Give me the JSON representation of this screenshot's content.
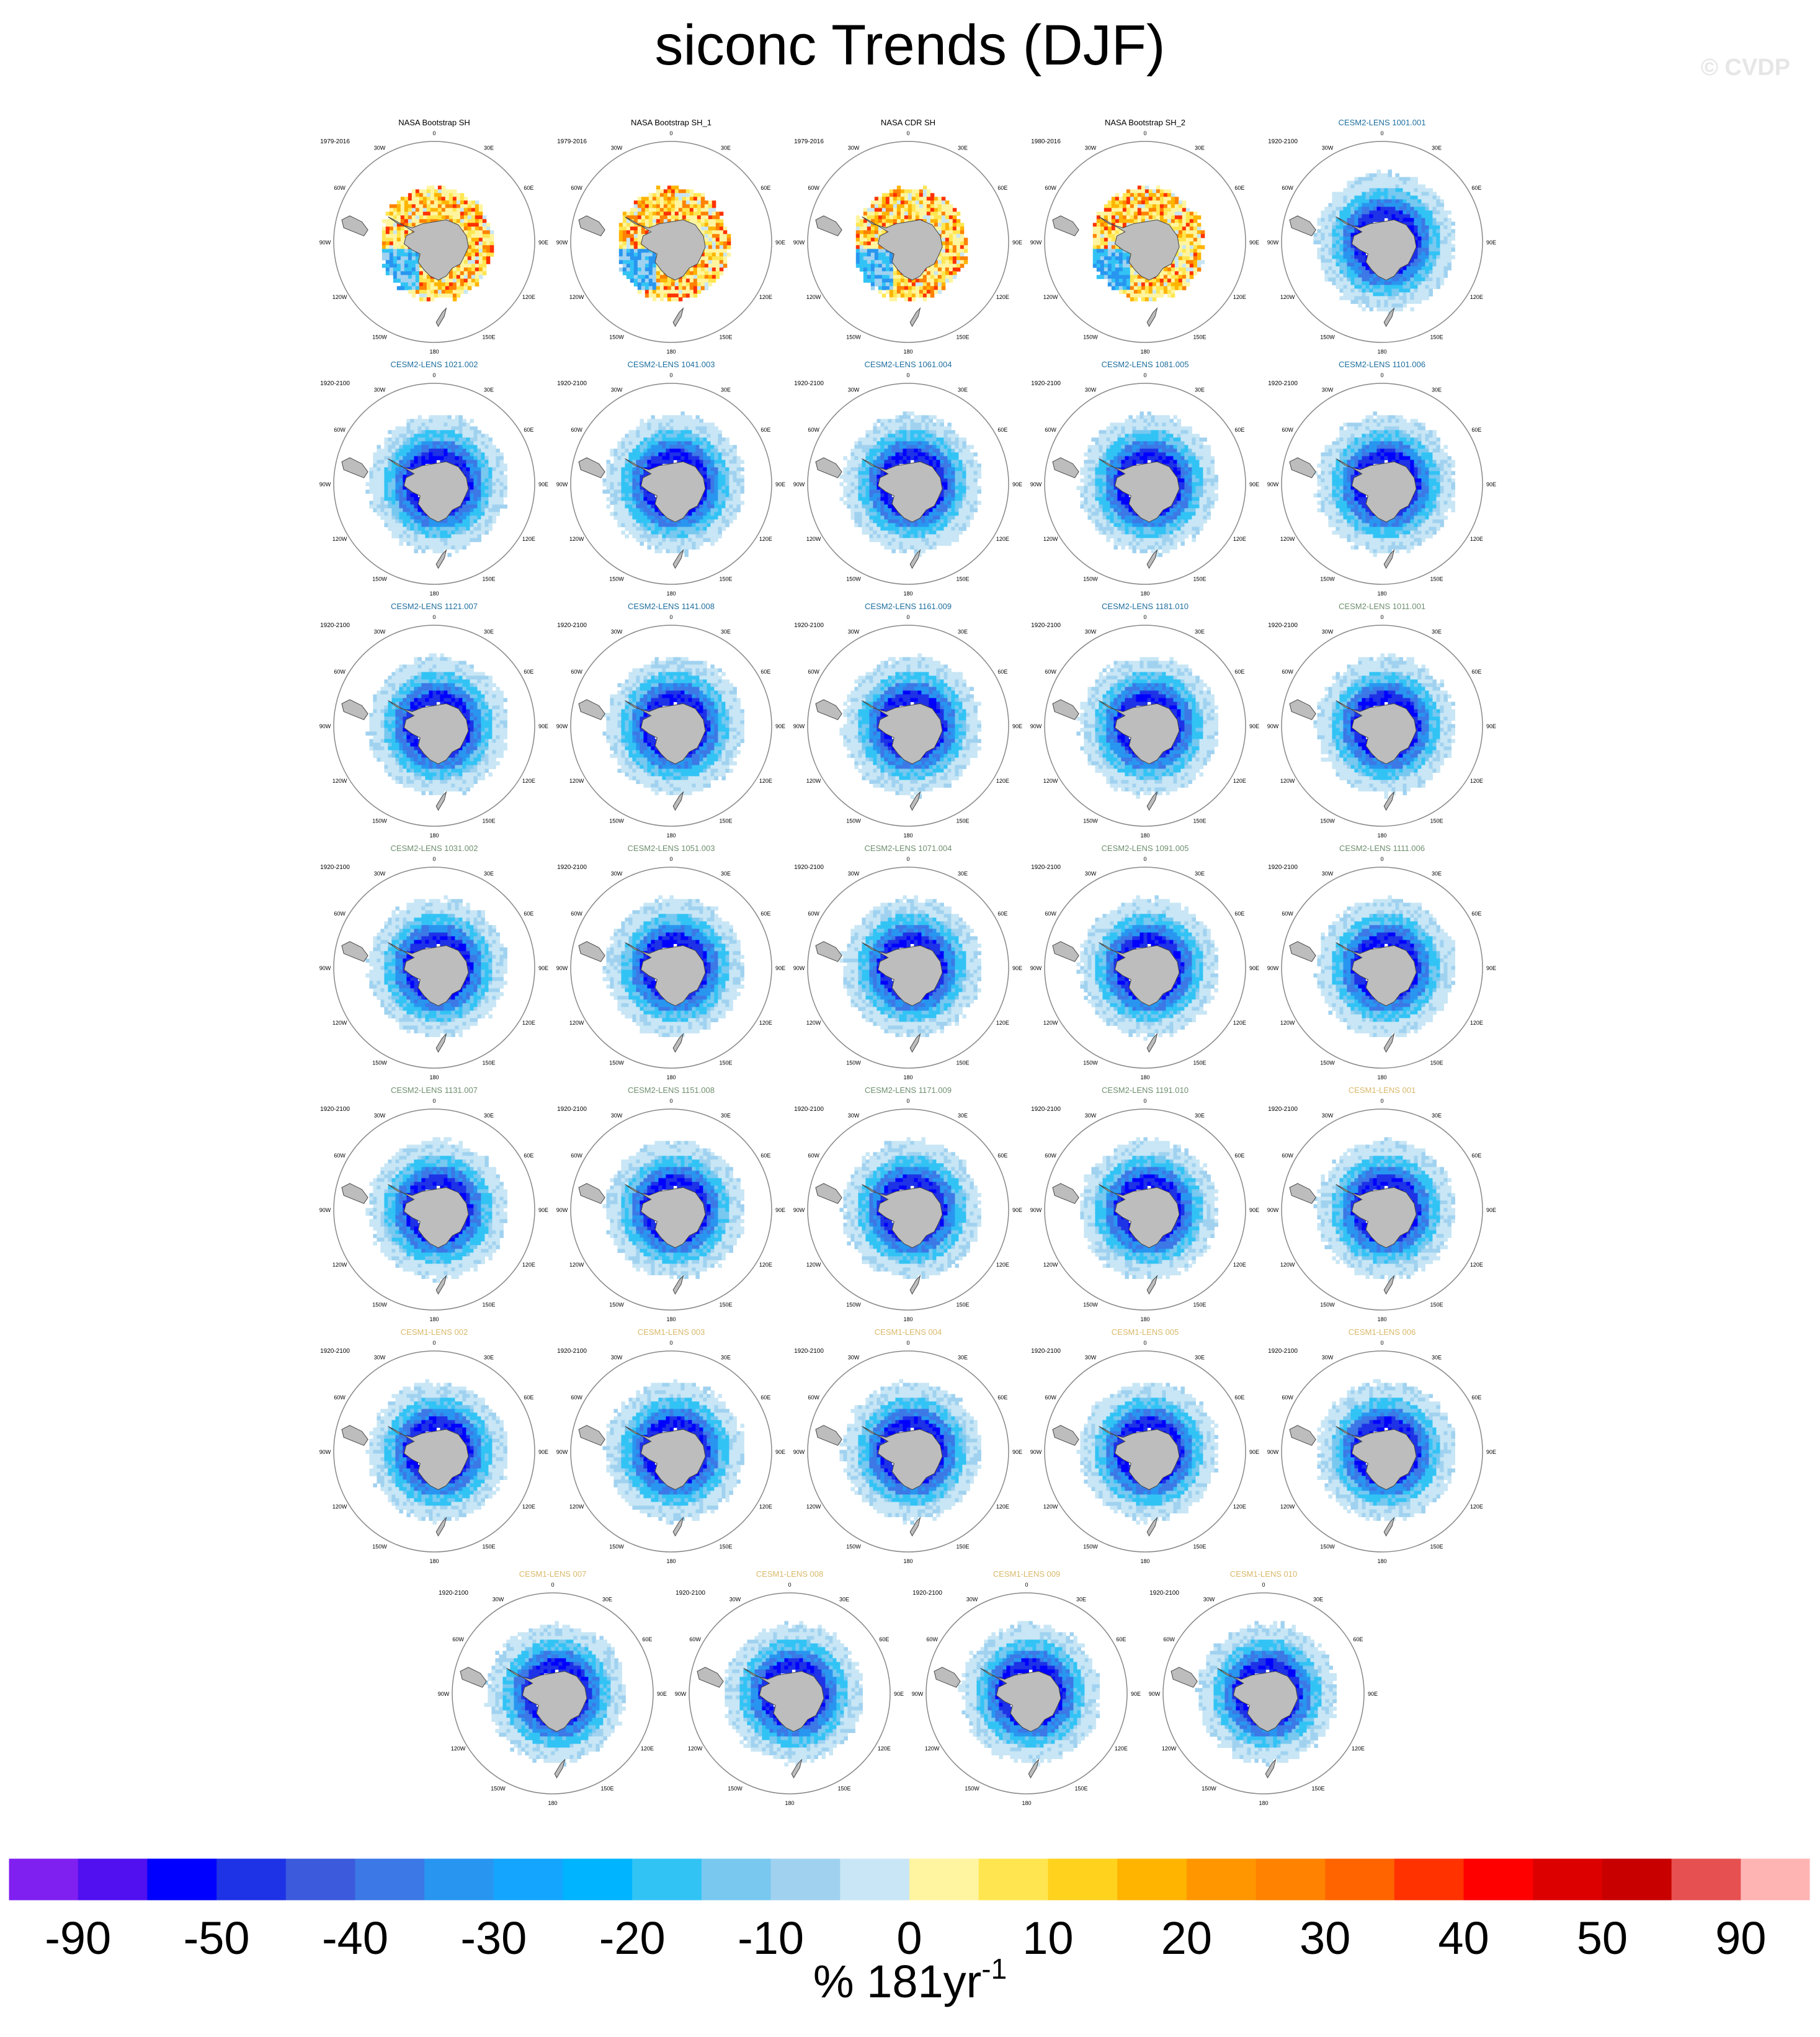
{
  "title": "siconc Trends (DJF)",
  "copyright": "© CVDP",
  "chart_data": {
    "type": "polar-map-panels",
    "season": "DJF",
    "variable": "siconc",
    "hemisphere": "SH",
    "map_labels": {
      "lon_ticks": [
        "0",
        "30E",
        "60E",
        "90E",
        "120E",
        "150E",
        "180",
        "150W",
        "120W",
        "90W",
        "60W",
        "30W"
      ]
    },
    "panels": [
      {
        "name": "NASA Bootstrap SH",
        "period": "1979-2016",
        "group": "obs",
        "pattern": "obs",
        "color": "#000000"
      },
      {
        "name": "NASA Bootstrap SH_1",
        "period": "1979-2016",
        "group": "obs",
        "pattern": "obs",
        "color": "#000000"
      },
      {
        "name": "NASA CDR SH",
        "period": "1979-2016",
        "group": "obs",
        "pattern": "obs",
        "color": "#000000"
      },
      {
        "name": "NASA Bootstrap SH_2",
        "period": "1980-2016",
        "group": "obs",
        "pattern": "obs",
        "color": "#000000"
      },
      {
        "name": "CESM2-LENS 1001.001",
        "period": "1920-2100",
        "group": "cesm2a",
        "pattern": "decline",
        "color": "#1f6f9f"
      },
      {
        "name": "CESM2-LENS 1021.002",
        "period": "1920-2100",
        "group": "cesm2a",
        "pattern": "decline",
        "color": "#1f6f9f"
      },
      {
        "name": "CESM2-LENS 1041.003",
        "period": "1920-2100",
        "group": "cesm2a",
        "pattern": "decline",
        "color": "#1f6f9f"
      },
      {
        "name": "CESM2-LENS 1061.004",
        "period": "1920-2100",
        "group": "cesm2a",
        "pattern": "decline",
        "color": "#1f6f9f"
      },
      {
        "name": "CESM2-LENS 1081.005",
        "period": "1920-2100",
        "group": "cesm2a",
        "pattern": "decline",
        "color": "#1f6f9f"
      },
      {
        "name": "CESM2-LENS 1101.006",
        "period": "1920-2100",
        "group": "cesm2a",
        "pattern": "decline",
        "color": "#1f6f9f"
      },
      {
        "name": "CESM2-LENS 1121.007",
        "period": "1920-2100",
        "group": "cesm2a",
        "pattern": "decline",
        "color": "#1f6f9f"
      },
      {
        "name": "CESM2-LENS 1141.008",
        "period": "1920-2100",
        "group": "cesm2a",
        "pattern": "decline",
        "color": "#1f6f9f"
      },
      {
        "name": "CESM2-LENS 1161.009",
        "period": "1920-2100",
        "group": "cesm2a",
        "pattern": "decline",
        "color": "#1f6f9f"
      },
      {
        "name": "CESM2-LENS 1181.010",
        "period": "1920-2100",
        "group": "cesm2a",
        "pattern": "decline",
        "color": "#1f6f9f"
      },
      {
        "name": "CESM2-LENS 1011.001",
        "period": "1920-2100",
        "group": "cesm2b",
        "pattern": "decline",
        "color": "#6f8f6f"
      },
      {
        "name": "CESM2-LENS 1031.002",
        "period": "1920-2100",
        "group": "cesm2b",
        "pattern": "decline",
        "color": "#6f8f6f"
      },
      {
        "name": "CESM2-LENS 1051.003",
        "period": "1920-2100",
        "group": "cesm2b",
        "pattern": "decline",
        "color": "#6f8f6f"
      },
      {
        "name": "CESM2-LENS 1071.004",
        "period": "1920-2100",
        "group": "cesm2b",
        "pattern": "decline",
        "color": "#6f8f6f"
      },
      {
        "name": "CESM2-LENS 1091.005",
        "period": "1920-2100",
        "group": "cesm2b",
        "pattern": "decline",
        "color": "#6f8f6f"
      },
      {
        "name": "CESM2-LENS 1111.006",
        "period": "1920-2100",
        "group": "cesm2b",
        "pattern": "decline",
        "color": "#6f8f6f"
      },
      {
        "name": "CESM2-LENS 1131.007",
        "period": "1920-2100",
        "group": "cesm2b",
        "pattern": "decline",
        "color": "#6f8f6f"
      },
      {
        "name": "CESM2-LENS 1151.008",
        "period": "1920-2100",
        "group": "cesm2b",
        "pattern": "decline",
        "color": "#6f8f6f"
      },
      {
        "name": "CESM2-LENS 1171.009",
        "period": "1920-2100",
        "group": "cesm2b",
        "pattern": "decline",
        "color": "#6f8f6f"
      },
      {
        "name": "CESM2-LENS 1191.010",
        "period": "1920-2100",
        "group": "cesm2b",
        "pattern": "decline",
        "color": "#6f8f6f"
      },
      {
        "name": "CESM1-LENS 001",
        "period": "1920-2100",
        "group": "cesm1",
        "pattern": "decline",
        "color": "#d9b96a"
      },
      {
        "name": "CESM1-LENS 002",
        "period": "1920-2100",
        "group": "cesm1",
        "pattern": "decline",
        "color": "#d9b96a"
      },
      {
        "name": "CESM1-LENS 003",
        "period": "1920-2100",
        "group": "cesm1",
        "pattern": "decline",
        "color": "#d9b96a"
      },
      {
        "name": "CESM1-LENS 004",
        "period": "1920-2100",
        "group": "cesm1",
        "pattern": "decline",
        "color": "#d9b96a"
      },
      {
        "name": "CESM1-LENS 005",
        "period": "1920-2100",
        "group": "cesm1",
        "pattern": "decline",
        "color": "#d9b96a"
      },
      {
        "name": "CESM1-LENS 006",
        "period": "1920-2100",
        "group": "cesm1",
        "pattern": "decline",
        "color": "#d9b96a"
      },
      {
        "name": "CESM1-LENS 007",
        "period": "1920-2100",
        "group": "cesm1",
        "pattern": "decline",
        "color": "#d9b96a"
      },
      {
        "name": "CESM1-LENS 008",
        "period": "1920-2100",
        "group": "cesm1",
        "pattern": "decline",
        "color": "#d9b96a"
      },
      {
        "name": "CESM1-LENS 009",
        "period": "1920-2100",
        "group": "cesm1",
        "pattern": "decline",
        "color": "#d9b96a"
      },
      {
        "name": "CESM1-LENS 010",
        "period": "1920-2100",
        "group": "cesm1",
        "pattern": "decline",
        "color": "#d9b96a"
      }
    ],
    "colorbar": {
      "colors": [
        "#8020f0",
        "#5010f0",
        "#0000ff",
        "#1e32e6",
        "#3c5adc",
        "#3c78e6",
        "#2896f0",
        "#14a5ff",
        "#00b4ff",
        "#32c3f5",
        "#78c8f0",
        "#a0d2f0",
        "#c8e6f5",
        "#fff5a0",
        "#ffe650",
        "#ffd21e",
        "#ffb400",
        "#ff9600",
        "#ff8200",
        "#ff6400",
        "#ff3200",
        "#ff0000",
        "#dc0000",
        "#c80000",
        "#e65050",
        "#ffb4b4"
      ],
      "tick_labels": [
        "-90",
        "-50",
        "-40",
        "-30",
        "-20",
        "-10",
        "0",
        "10",
        "20",
        "30",
        "40",
        "50",
        "90"
      ],
      "units": "% 181yr",
      "units_sup": "-1"
    }
  }
}
